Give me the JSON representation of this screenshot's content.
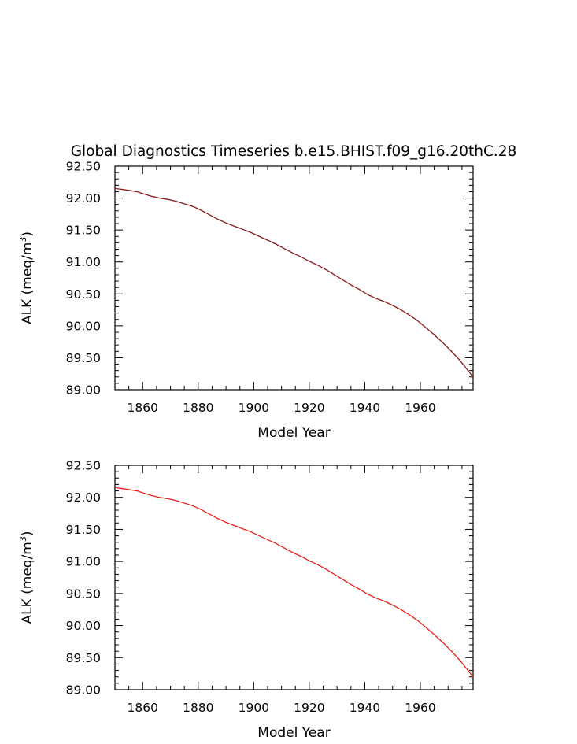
{
  "figure_title": "Global Diagnostics Timeseries b.e15.BHIST.f09_g16.20thC.28",
  "chart_data": [
    {
      "type": "line",
      "title": "Global Diagnostics Timeseries b.e15.BHIST.f09_g16.20thC.28",
      "xlabel": "Model Year",
      "ylabel": "ALK (meq/m",
      "ylabel_sup": "3",
      "ylabel_end": ")",
      "xlim": [
        1850,
        1979
      ],
      "ylim": [
        89.0,
        92.5
      ],
      "xticks": [
        1860,
        1880,
        1900,
        1920,
        1940,
        1960
      ],
      "yticks": [
        "89.00",
        "89.50",
        "90.00",
        "90.50",
        "91.00",
        "91.50",
        "92.00",
        "92.50"
      ],
      "grid": false,
      "line_color": "#8b1a1a",
      "series": [
        {
          "x": [
            1850,
            1852,
            1855,
            1858,
            1860,
            1863,
            1866,
            1869,
            1872,
            1875,
            1878,
            1881,
            1884,
            1887,
            1890,
            1893,
            1896,
            1899,
            1902,
            1905,
            1908,
            1911,
            1914,
            1917,
            1920,
            1923,
            1926,
            1929,
            1932,
            1935,
            1938,
            1941,
            1944,
            1947,
            1950,
            1953,
            1956,
            1959,
            1962,
            1965,
            1968,
            1971,
            1974,
            1977,
            1979
          ],
          "values": [
            92.15,
            92.14,
            92.12,
            92.1,
            92.07,
            92.03,
            92.0,
            91.98,
            91.95,
            91.91,
            91.87,
            91.81,
            91.74,
            91.67,
            91.61,
            91.56,
            91.51,
            91.46,
            91.4,
            91.34,
            91.28,
            91.21,
            91.14,
            91.08,
            91.01,
            90.95,
            90.88,
            90.8,
            90.72,
            90.64,
            90.57,
            90.49,
            90.43,
            90.38,
            90.32,
            90.25,
            90.17,
            90.08,
            89.97,
            89.86,
            89.74,
            89.61,
            89.47,
            89.31,
            89.2
          ]
        }
      ]
    },
    {
      "type": "line",
      "title": "",
      "xlabel": "Model Year",
      "ylabel": "ALK (meq/m",
      "ylabel_sup": "3",
      "ylabel_end": ")",
      "xlim": [
        1850,
        1979
      ],
      "ylim": [
        89.0,
        92.5
      ],
      "xticks": [
        1860,
        1880,
        1900,
        1920,
        1940,
        1960
      ],
      "yticks": [
        "89.00",
        "89.50",
        "90.00",
        "90.50",
        "91.00",
        "91.50",
        "92.00",
        "92.50"
      ],
      "grid": false,
      "line_color": "#e8211a",
      "series": [
        {
          "x": [
            1850,
            1852,
            1855,
            1858,
            1860,
            1863,
            1866,
            1869,
            1872,
            1875,
            1878,
            1881,
            1884,
            1887,
            1890,
            1893,
            1896,
            1899,
            1902,
            1905,
            1908,
            1911,
            1914,
            1917,
            1920,
            1923,
            1926,
            1929,
            1932,
            1935,
            1938,
            1941,
            1944,
            1947,
            1950,
            1953,
            1956,
            1959,
            1962,
            1965,
            1968,
            1971,
            1974,
            1977,
            1979
          ],
          "values": [
            92.15,
            92.14,
            92.12,
            92.1,
            92.07,
            92.03,
            92.0,
            91.98,
            91.95,
            91.91,
            91.87,
            91.81,
            91.74,
            91.67,
            91.61,
            91.56,
            91.51,
            91.46,
            91.4,
            91.34,
            91.28,
            91.21,
            91.14,
            91.08,
            91.01,
            90.95,
            90.88,
            90.8,
            90.72,
            90.64,
            90.57,
            90.49,
            90.43,
            90.38,
            90.32,
            90.25,
            90.17,
            90.08,
            89.97,
            89.86,
            89.74,
            89.61,
            89.47,
            89.31,
            89.2
          ]
        }
      ]
    }
  ]
}
